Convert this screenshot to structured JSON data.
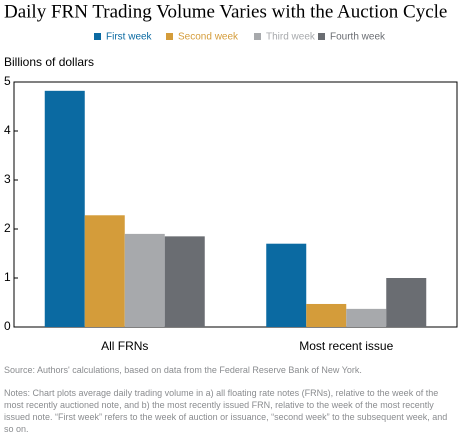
{
  "chart_data": {
    "type": "bar",
    "title": "Daily FRN Trading Volume Varies with the Auction Cycle",
    "y_label": "Billions of dollars",
    "categories": [
      "All FRNs",
      "Most recent issue"
    ],
    "series": [
      {
        "name": "First week",
        "color": "#0b6aa2",
        "values": [
          4.82,
          1.7
        ]
      },
      {
        "name": "Second week",
        "color": "#d49c3a",
        "values": [
          2.28,
          0.47
        ]
      },
      {
        "name": "Third week",
        "color": "#a7a9ac",
        "values": [
          1.9,
          0.37
        ]
      },
      {
        "name": "Fourth week",
        "color": "#6a6d72",
        "values": [
          1.85,
          1.0
        ]
      }
    ],
    "ylim": [
      0,
      5
    ],
    "yticks": [
      0,
      1,
      2,
      3,
      4,
      5
    ],
    "source": "Source: Authors' calculations, based on data from the Federal Reserve Bank of New York.",
    "notes": "Notes: Chart plots average daily trading volume in a) all floating rate notes (FRNs), relative to the week of the most recently auctioned note, and b) the most recently issued FRN, relative to the week of the most recently issued note. “First week” refers to the week of auction or issuance, “second week” to the subsequent week, and so on."
  }
}
